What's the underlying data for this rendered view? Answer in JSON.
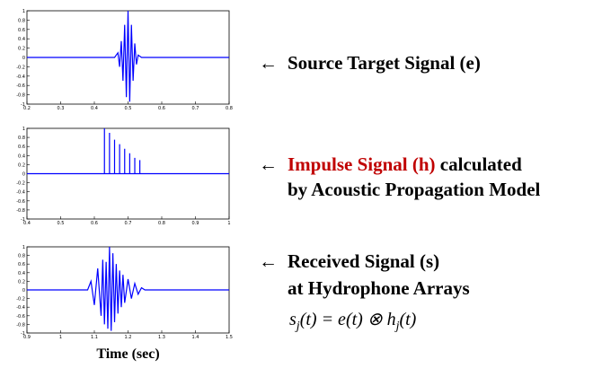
{
  "chart_data": [
    {
      "type": "line",
      "color": "#0000ff",
      "x": [
        0.2,
        0.46,
        0.47,
        0.475,
        0.48,
        0.485,
        0.49,
        0.495,
        0.5,
        0.505,
        0.51,
        0.515,
        0.52,
        0.525,
        0.53,
        0.54,
        0.8
      ],
      "values": [
        0,
        0,
        0.1,
        -0.2,
        0.35,
        -0.5,
        0.7,
        -0.85,
        1,
        -0.95,
        0.7,
        -0.5,
        0.3,
        -0.15,
        0.05,
        0,
        0
      ],
      "xlim": [
        0.2,
        0.8
      ],
      "xticks": [
        0.2,
        0.3,
        0.4,
        0.5,
        0.6,
        0.7,
        0.8
      ],
      "ylim": [
        -1,
        1
      ],
      "yticks": [
        1,
        0.8,
        0.6,
        0.4,
        0.2,
        0,
        -0.2,
        -0.4,
        -0.6,
        -0.8,
        -1
      ]
    },
    {
      "type": "line",
      "color": "#0000ff",
      "x": [
        0.4,
        0.63,
        0.63,
        0.63,
        0.645,
        0.645,
        0.645,
        0.66,
        0.66,
        0.66,
        0.675,
        0.675,
        0.675,
        0.69,
        0.69,
        0.69,
        0.705,
        0.705,
        0.705,
        0.72,
        0.72,
        0.72,
        0.735,
        0.735,
        0.735,
        1
      ],
      "values": [
        0,
        0,
        1,
        0,
        0,
        0.9,
        0,
        0,
        0.75,
        0,
        0,
        0.65,
        0,
        0,
        0.55,
        0,
        0,
        0.45,
        0,
        0,
        0.35,
        0,
        0,
        0.3,
        0,
        0
      ],
      "xlim": [
        0.4,
        1
      ],
      "xticks": [
        0.4,
        0.5,
        0.6,
        0.7,
        0.8,
        0.9,
        1
      ],
      "ylim": [
        -1,
        1
      ],
      "yticks": [
        1,
        0.8,
        0.6,
        0.4,
        0.2,
        0,
        -0.2,
        -0.4,
        -0.6,
        -0.8,
        -1
      ]
    },
    {
      "type": "line",
      "color": "#0000ff",
      "xlabel": "Time (sec)",
      "x": [
        0.9,
        1.08,
        1.09,
        1.1,
        1.11,
        1.12,
        1.125,
        1.13,
        1.135,
        1.14,
        1.145,
        1.15,
        1.155,
        1.16,
        1.165,
        1.17,
        1.175,
        1.18,
        1.185,
        1.19,
        1.2,
        1.21,
        1.22,
        1.23,
        1.24,
        1.25,
        1.5
      ],
      "values": [
        0,
        0,
        0.2,
        -0.35,
        0.5,
        -0.6,
        0.7,
        -0.8,
        0.65,
        -0.9,
        1,
        -0.95,
        0.85,
        -0.75,
        0.6,
        -0.55,
        0.45,
        -0.4,
        0.35,
        -0.3,
        0.25,
        -0.2,
        0.15,
        -0.1,
        0.05,
        0,
        0
      ],
      "xlim": [
        0.9,
        1.5
      ],
      "xticks": [
        0.9,
        1,
        1.1,
        1.2,
        1.3,
        1.4,
        1.5
      ],
      "ylim": [
        -1,
        1
      ],
      "yticks": [
        1,
        0.8,
        0.6,
        0.4,
        0.2,
        0,
        -0.2,
        -0.4,
        -0.6,
        -0.8,
        -1
      ]
    }
  ],
  "labels": {
    "arrow": "←",
    "source": "Source Target Signal (e)",
    "impulse_red": "Impulse Signal (h)",
    "impulse_rest": " calculated",
    "impulse_line2": "by Acoustic Propagation Model",
    "received_line1": "Received Signal (s)",
    "received_line2": "at Hydrophone Arrays",
    "formula": [
      "s",
      "j",
      "(t) = e(t) ⊗ h",
      "j",
      "(t)"
    ]
  }
}
